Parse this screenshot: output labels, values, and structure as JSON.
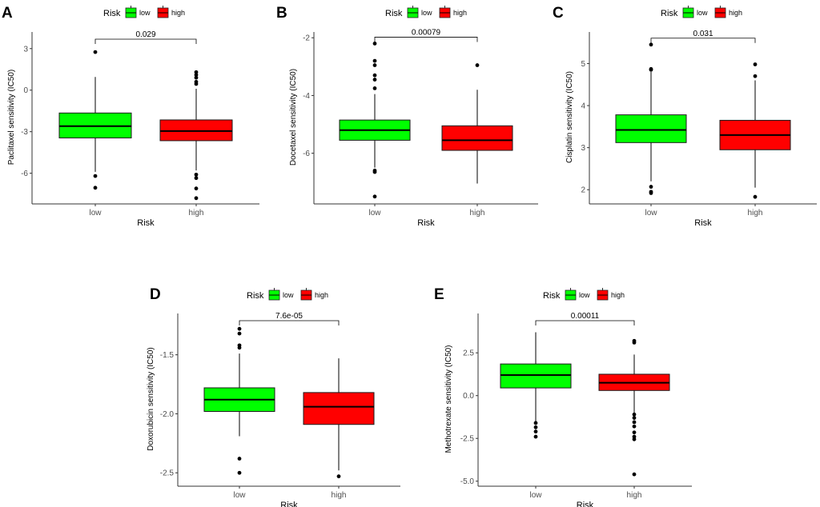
{
  "figure": {
    "legend_title": "Risk",
    "x_axis_label": "Risk",
    "groups": [
      "low",
      "high"
    ]
  },
  "colors": {
    "low": "#00ff00",
    "high": "#ff0000",
    "axis": "#333333",
    "text": "#000000",
    "tick_text": "#4d4d4d"
  },
  "chart_data": [
    {
      "panel": "A",
      "type": "boxplot",
      "ylabel": "Paclitaxel sensitivity (IC50)",
      "categories": [
        "low",
        "high"
      ],
      "ylim": [
        -8.1,
        4.2
      ],
      "yticks": [
        -6,
        -3,
        0,
        3
      ],
      "ytick_labels": [
        "-6",
        "-3",
        "0",
        "3"
      ],
      "pvalue": "0.029",
      "boxes": [
        {
          "name": "low",
          "q1": -3.45,
          "median": -2.6,
          "q3": -1.65,
          "whisker_low": -5.9,
          "whisker_high": 0.95,
          "outliers": [
            2.75,
            -6.2,
            -7.05
          ]
        },
        {
          "name": "high",
          "q1": -3.65,
          "median": -2.95,
          "q3": -2.15,
          "whisker_low": -5.8,
          "whisker_high": 0.1,
          "outliers": [
            1.3,
            1.1,
            0.9,
            0.6,
            0.45,
            -6.1,
            -6.35,
            -7.1,
            -7.8
          ]
        }
      ]
    },
    {
      "panel": "B",
      "type": "boxplot",
      "ylabel": "Docetaxel sensitivity (IC50)",
      "categories": [
        "low",
        "high"
      ],
      "ylim": [
        -7.7,
        -1.8
      ],
      "yticks": [
        -6,
        -4,
        -2
      ],
      "ytick_labels": [
        "-6",
        "-4",
        "-2"
      ],
      "pvalue": "0.00079",
      "boxes": [
        {
          "name": "low",
          "q1": -5.55,
          "median": -5.2,
          "q3": -4.85,
          "whisker_low": -6.5,
          "whisker_high": -3.95,
          "outliers": [
            -2.2,
            -2.8,
            -2.95,
            -3.3,
            -3.45,
            -3.75,
            -6.6,
            -6.65,
            -7.5
          ]
        },
        {
          "name": "high",
          "q1": -5.9,
          "median": -5.55,
          "q3": -5.05,
          "whisker_low": -7.05,
          "whisker_high": -3.8,
          "outliers": [
            -2.95
          ]
        }
      ]
    },
    {
      "panel": "C",
      "type": "boxplot",
      "ylabel": "Cisplatin sensitivity (IC50)",
      "categories": [
        "low",
        "high"
      ],
      "ylim": [
        1.7,
        5.75
      ],
      "yticks": [
        2,
        3,
        4,
        5
      ],
      "ytick_labels": [
        "2",
        "3",
        "4",
        "5"
      ],
      "pvalue": "0.031",
      "boxes": [
        {
          "name": "low",
          "q1": 3.12,
          "median": 3.42,
          "q3": 3.78,
          "whisker_low": 2.2,
          "whisker_high": 4.8,
          "outliers": [
            5.45,
            4.87,
            4.85,
            2.07,
            1.95,
            1.92
          ]
        },
        {
          "name": "high",
          "q1": 2.95,
          "median": 3.3,
          "q3": 3.65,
          "whisker_low": 2.05,
          "whisker_high": 4.6,
          "outliers": [
            4.98,
            4.7,
            1.83
          ]
        }
      ]
    },
    {
      "panel": "D",
      "type": "boxplot",
      "ylabel": "Doxorubicin sensitivity (IC50)",
      "categories": [
        "low",
        "high"
      ],
      "ylim": [
        -2.6,
        -1.15
      ],
      "yticks": [
        -2.5,
        -2.0,
        -1.5
      ],
      "ytick_labels": [
        "-2.5",
        "-2.0",
        "-1.5"
      ],
      "pvalue": "7.6e-05",
      "boxes": [
        {
          "name": "low",
          "q1": -1.98,
          "median": -1.88,
          "q3": -1.78,
          "whisker_low": -2.19,
          "whisker_high": -1.49,
          "outliers": [
            -1.28,
            -1.32,
            -1.42,
            -1.44,
            -2.38,
            -2.5
          ]
        },
        {
          "name": "high",
          "q1": -2.09,
          "median": -1.94,
          "q3": -1.82,
          "whisker_low": -2.48,
          "whisker_high": -1.53,
          "outliers": [
            -2.53
          ]
        }
      ]
    },
    {
      "panel": "E",
      "type": "boxplot",
      "ylabel": "Methotrexate sensitivity (IC50)",
      "categories": [
        "low",
        "high"
      ],
      "ylim": [
        -5.2,
        4.8
      ],
      "yticks": [
        -5.0,
        -2.5,
        0.0,
        2.5
      ],
      "ytick_labels": [
        "-5.0",
        "-2.5",
        "0.0",
        "2.5"
      ],
      "pvalue": "0.00011",
      "boxes": [
        {
          "name": "low",
          "q1": 0.45,
          "median": 1.2,
          "q3": 1.85,
          "whisker_low": -1.5,
          "whisker_high": 3.7,
          "outliers": [
            -1.6,
            -1.85,
            -2.1,
            -2.4
          ]
        },
        {
          "name": "high",
          "q1": 0.3,
          "median": 0.75,
          "q3": 1.25,
          "whisker_low": -1.0,
          "whisker_high": 2.4,
          "outliers": [
            3.2,
            3.1,
            -1.1,
            -1.3,
            -1.55,
            -1.8,
            -2.15,
            -2.4,
            -2.55,
            -4.6
          ]
        }
      ]
    }
  ]
}
